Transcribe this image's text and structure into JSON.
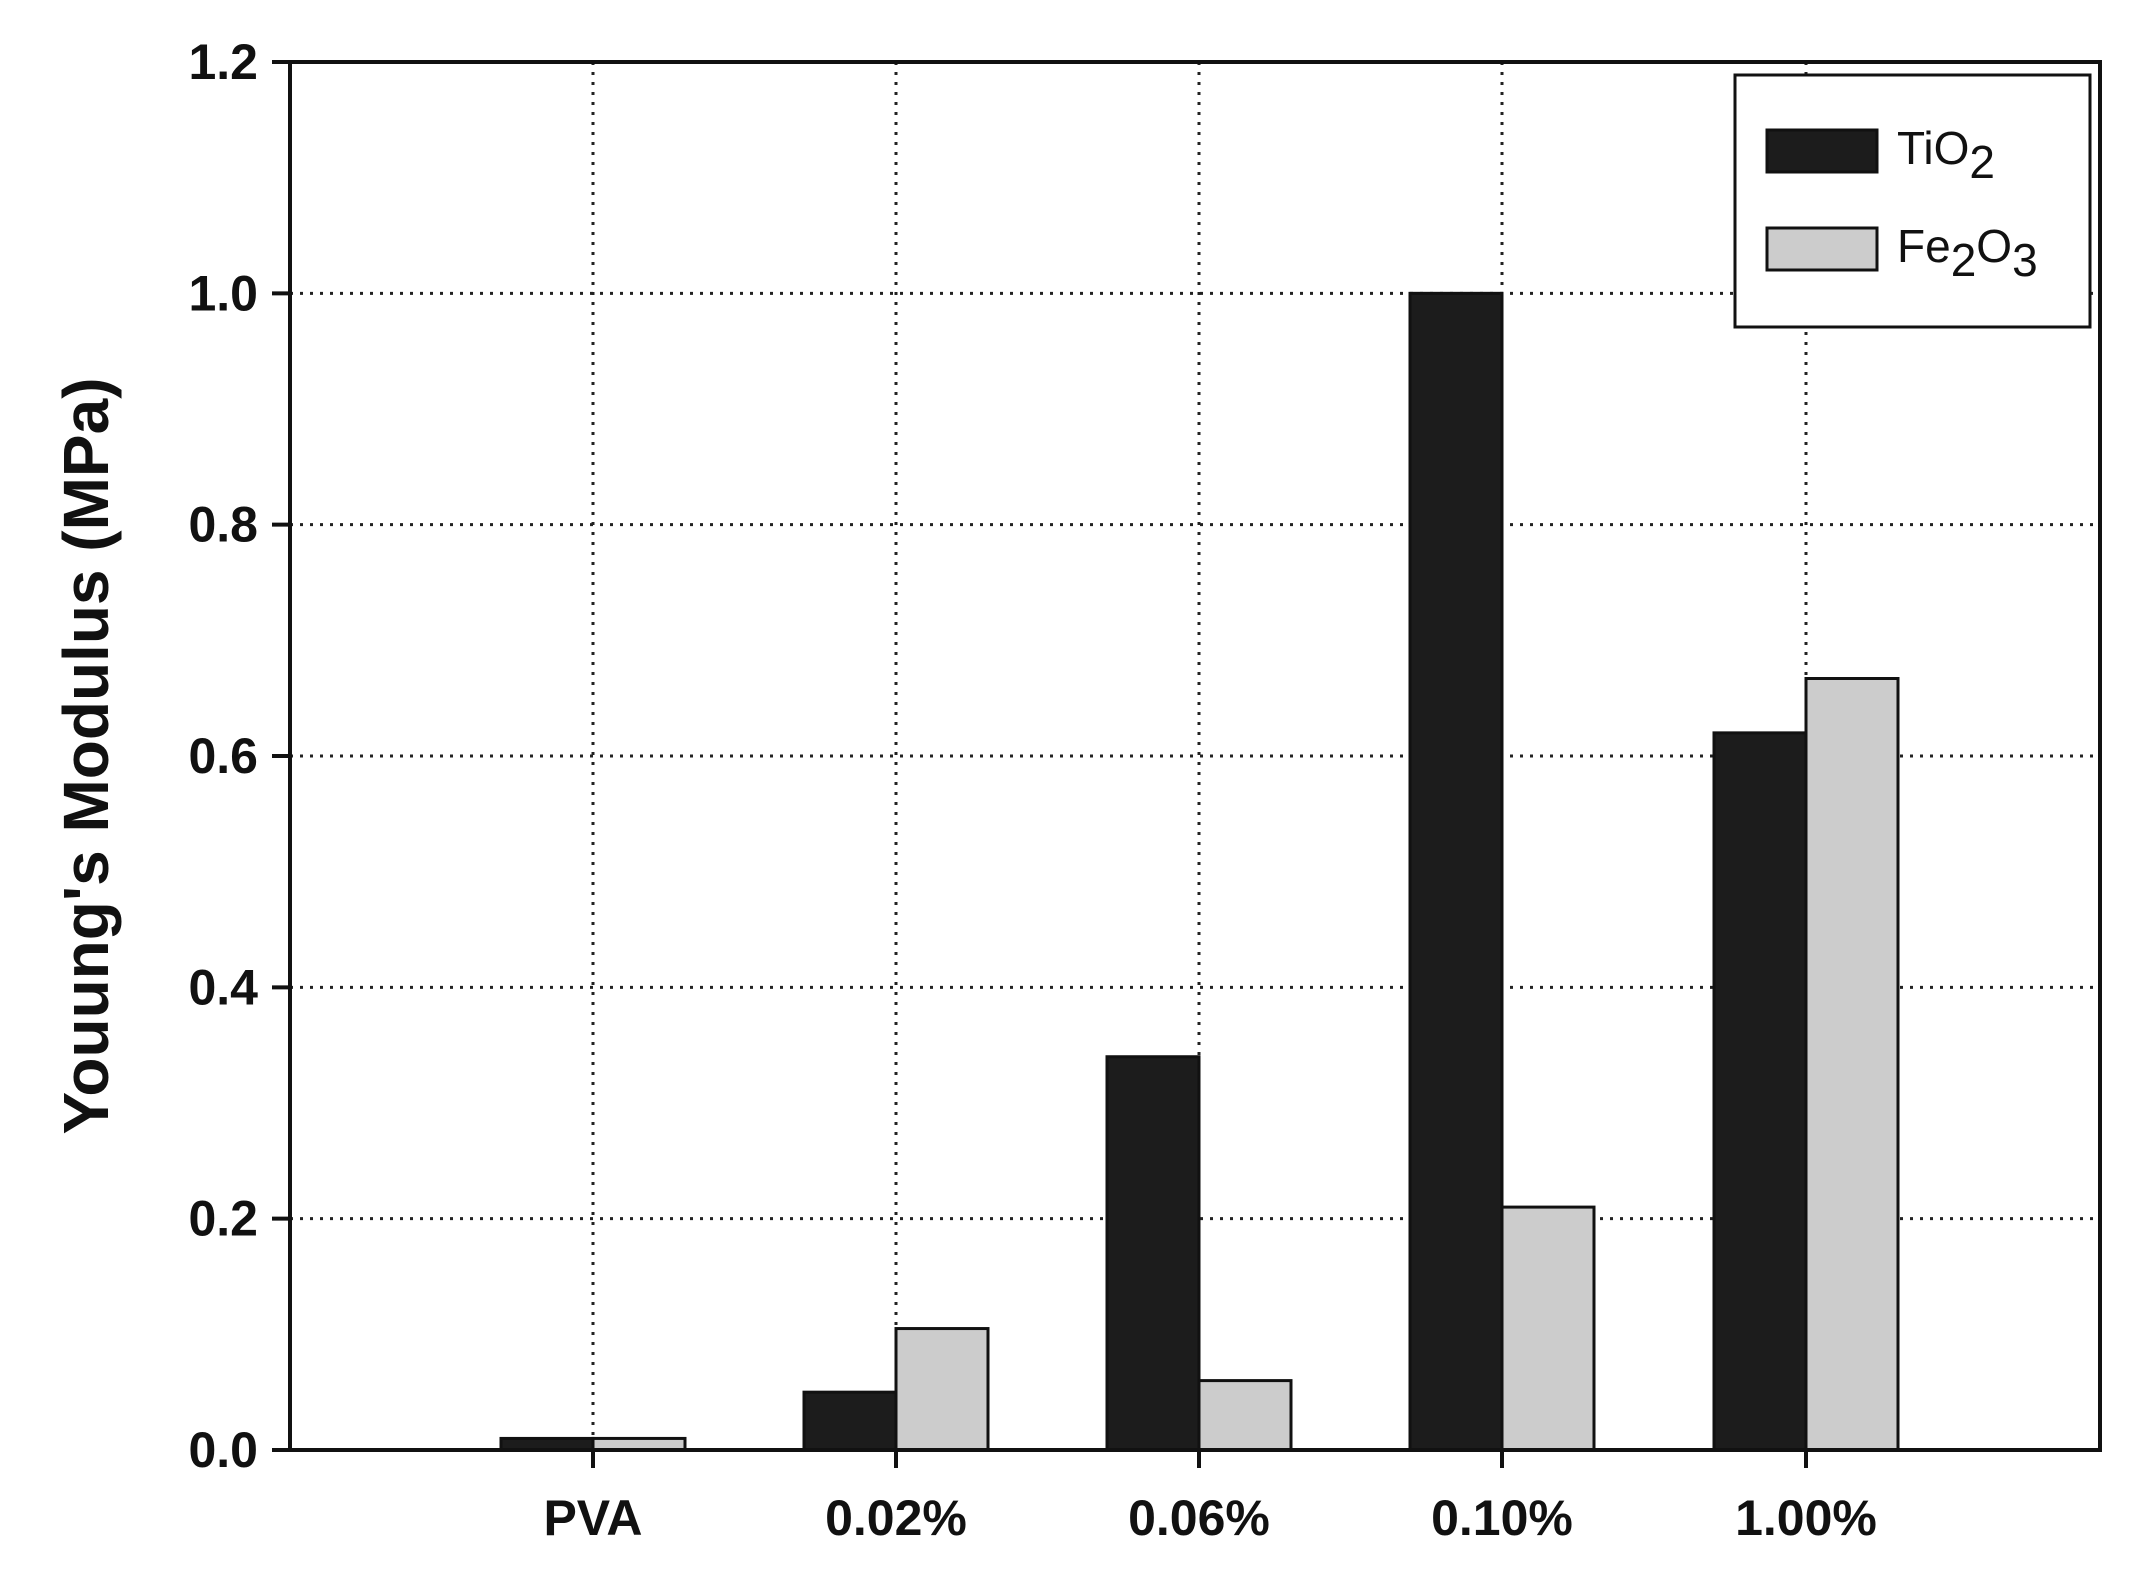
{
  "chart_data": {
    "type": "bar",
    "title": "",
    "xlabel": "",
    "ylabel": "Youung's Modulus (MPa)",
    "categories": [
      "PVA",
      "0.02%",
      "0.06%",
      "0.10%",
      "1.00%"
    ],
    "series": [
      {
        "name": "TiO2",
        "legend_base": "TiO",
        "legend_sub": "2",
        "color": "#1c1c1c",
        "values": [
          0.01,
          0.05,
          0.34,
          1.0,
          0.62
        ]
      },
      {
        "name": "Fe2O3",
        "legend_base": "Fe",
        "legend_sub": "2",
        "legend_mid": "O",
        "legend_sub2": "3",
        "color": "#cccccc",
        "values": [
          0.01,
          0.105,
          0.06,
          0.21,
          0.667
        ]
      }
    ],
    "ylim": [
      0,
      1.2
    ],
    "yticks": [
      "0.0",
      "0.2",
      "0.4",
      "0.6",
      "0.8",
      "1.0",
      "1.2"
    ],
    "grid": true,
    "grid_style": "dotted",
    "legend_position": "top-right"
  }
}
